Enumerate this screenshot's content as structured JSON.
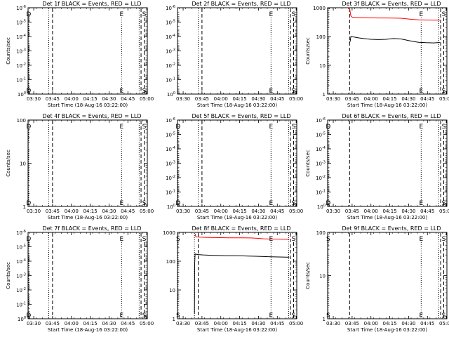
{
  "figure": {
    "panel_count": 9,
    "x_tick_labels": [
      "03:30",
      "03:45",
      "04:00",
      "04:15",
      "04:30",
      "04:45",
      "05:00"
    ],
    "x_axis_label": "Start Time (18-Aug-16 03:22:00)",
    "y_axis_label": "Counts/sec"
  },
  "chart_data": [
    {
      "type": "line",
      "title": "Det 1f BLACK = Events, RED = LLD",
      "xlabel": "Start Time (18-Aug-16 03:22:00)",
      "ylabel": "Counts/sec",
      "x_unit": "minutes after 03:22:00",
      "xlim": [
        3.5,
        98.5
      ],
      "ylim": [
        1,
        1e-06
      ],
      "y_scale": "log",
      "y_ticks": [
        "10^0",
        "10^-1",
        "10^-2",
        "10^-3",
        "10^-4",
        "10^-5",
        "10^-6"
      ],
      "markers": [
        {
          "label": "D",
          "x": 4,
          "style": "dotted"
        },
        {
          "label": "",
          "x": 20,
          "style": "dotted"
        },
        {
          "label": "",
          "x": 23,
          "style": "dashed"
        },
        {
          "label": "E",
          "x": 78,
          "style": "dotted"
        },
        {
          "label": "",
          "x": 92,
          "style": "dotted"
        },
        {
          "label": "",
          "x": 93.5,
          "style": "dashed"
        },
        {
          "label": "S",
          "x": 96,
          "style": "dashed"
        }
      ],
      "series": []
    },
    {
      "type": "line",
      "title": "Det 2f BLACK = Events, RED = LLD",
      "xlabel": "Start Time (18-Aug-16 03:22:00)",
      "ylabel": "",
      "x_unit": "minutes after 03:22:00",
      "xlim": [
        3.5,
        98.5
      ],
      "ylim": [
        1,
        1e-06
      ],
      "y_scale": "log",
      "y_ticks": [
        "10^0",
        "10^-1",
        "10^-2",
        "10^-3",
        "10^-4",
        "10^-5",
        "10^-6"
      ],
      "markers": [
        {
          "label": "",
          "x": 20,
          "style": "dotted"
        },
        {
          "label": "",
          "x": 23,
          "style": "dashed"
        },
        {
          "label": "E",
          "x": 78,
          "style": "dotted"
        },
        {
          "label": "",
          "x": 92,
          "style": "dotted"
        },
        {
          "label": "",
          "x": 93.5,
          "style": "dashed"
        },
        {
          "label": "S",
          "x": 96,
          "style": "dashed"
        }
      ],
      "series": []
    },
    {
      "type": "line",
      "title": "Det 3f BLACK = Events, RED = LLD",
      "xlabel": "Start Time (18-Aug-16 03:22:00)",
      "ylabel": "Counts/sec",
      "x_unit": "minutes after 03:22:00",
      "xlim": [
        3.5,
        98.5
      ],
      "ylim": [
        1,
        1000
      ],
      "y_scale": "log",
      "y_ticks": [
        "1",
        "10",
        "100",
        "1000"
      ],
      "markers": [
        {
          "label": "",
          "x": 4,
          "style": "dotted"
        },
        {
          "label": "",
          "x": 21,
          "style": "dashed"
        },
        {
          "label": "E",
          "x": 78,
          "style": "dotted"
        },
        {
          "label": "",
          "x": 92,
          "style": "dotted"
        },
        {
          "label": "",
          "x": 93.5,
          "style": "dashed"
        },
        {
          "label": "S",
          "x": 96,
          "style": "dashed"
        }
      ],
      "series": [
        {
          "color": "#ff0000",
          "x": [
            21,
            21.5,
            22,
            23,
            25,
            28,
            32,
            38,
            44,
            50,
            56,
            62,
            68,
            72,
            76,
            82,
            88,
            92.8
          ],
          "y": [
            980,
            700,
            520,
            470,
            460,
            455,
            450,
            445,
            440,
            440,
            435,
            430,
            405,
            390,
            380,
            375,
            372,
            370
          ]
        },
        {
          "color": "#000000",
          "x": [
            21,
            21.5,
            22,
            23,
            25,
            28,
            32,
            38,
            44,
            50,
            56,
            62,
            68,
            72,
            76,
            82,
            88,
            92.8
          ],
          "y": [
            60,
            70,
            100,
            98,
            95,
            90,
            85,
            80,
            78,
            80,
            85,
            82,
            72,
            67,
            63,
            61,
            60,
            62
          ]
        }
      ]
    },
    {
      "type": "line",
      "title": "Det 4f BLACK = Events, RED = LLD",
      "xlabel": "Start Time (18-Aug-16 03:22:00)",
      "ylabel": "Counts/sec",
      "x_unit": "minutes after 03:22:00",
      "xlim": [
        3.5,
        98.5
      ],
      "ylim": [
        1,
        100
      ],
      "y_scale": "log",
      "y_ticks": [
        "1",
        "10",
        "100"
      ],
      "markers": [
        {
          "label": "D",
          "x": 4,
          "style": "dotted"
        },
        {
          "label": "",
          "x": 20,
          "style": "dotted"
        },
        {
          "label": "",
          "x": 23,
          "style": "dashed"
        },
        {
          "label": "E",
          "x": 78,
          "style": "dotted"
        },
        {
          "label": "",
          "x": 92,
          "style": "dotted"
        },
        {
          "label": "",
          "x": 93.5,
          "style": "dashed"
        },
        {
          "label": "S",
          "x": 96,
          "style": "dashed"
        }
      ],
      "series": []
    },
    {
      "type": "line",
      "title": "Det 5f BLACK = Events, RED = LLD",
      "xlabel": "Start Time (18-Aug-16 03:22:00)",
      "ylabel": "",
      "x_unit": "minutes after 03:22:00",
      "xlim": [
        3.5,
        98.5
      ],
      "ylim": [
        1,
        1e-06
      ],
      "y_scale": "log",
      "y_ticks": [
        "10^0",
        "10^-1",
        "10^-2",
        "10^-3",
        "10^-4",
        "10^-5",
        "10^-6"
      ],
      "markers": [
        {
          "label": "D",
          "x": 4,
          "style": "dotted"
        },
        {
          "label": "",
          "x": 20,
          "style": "dotted"
        },
        {
          "label": "",
          "x": 23,
          "style": "dashed"
        },
        {
          "label": "E",
          "x": 78,
          "style": "dotted"
        },
        {
          "label": "",
          "x": 92,
          "style": "dotted"
        },
        {
          "label": "",
          "x": 93.5,
          "style": "dashed"
        },
        {
          "label": "S",
          "x": 96,
          "style": "dashed"
        }
      ],
      "series": []
    },
    {
      "type": "line",
      "title": "Det 6f BLACK = Events, RED = LLD",
      "xlabel": "Start Time (18-Aug-16 03:22:00)",
      "ylabel": "Counts/sec",
      "x_unit": "minutes after 03:22:00",
      "xlim": [
        3.5,
        98.5
      ],
      "ylim": [
        1,
        1e-06
      ],
      "y_scale": "log",
      "y_ticks": [
        "10^0",
        "10^-1",
        "10^-2",
        "10^-3",
        "10^-4",
        "10^-5",
        "10^-6"
      ],
      "markers": [
        {
          "label": "D",
          "x": 4,
          "style": "dotted"
        },
        {
          "label": "",
          "x": 21,
          "style": "dashed"
        },
        {
          "label": "E",
          "x": 78,
          "style": "dotted"
        },
        {
          "label": "",
          "x": 92,
          "style": "dotted"
        },
        {
          "label": "",
          "x": 93.5,
          "style": "dashed"
        },
        {
          "label": "S",
          "x": 96,
          "style": "dashed"
        }
      ],
      "series": []
    },
    {
      "type": "line",
      "title": "Det 7f BLACK = Events, RED = LLD",
      "xlabel": "Start Time (18-Aug-16 03:22:00)",
      "ylabel": "Counts/sec",
      "x_unit": "minutes after 03:22:00",
      "xlim": [
        3.5,
        98.5
      ],
      "ylim": [
        1,
        1e-06
      ],
      "y_scale": "log",
      "y_ticks": [
        "10^0",
        "10^-1",
        "10^-2",
        "10^-3",
        "10^-4",
        "10^-5",
        "10^-6"
      ],
      "markers": [
        {
          "label": "D",
          "x": 4,
          "style": "dotted"
        },
        {
          "label": "",
          "x": 20,
          "style": "dotted"
        },
        {
          "label": "",
          "x": 23,
          "style": "dashed"
        },
        {
          "label": "E",
          "x": 78,
          "style": "dotted"
        },
        {
          "label": "",
          "x": 92,
          "style": "dotted"
        },
        {
          "label": "",
          "x": 93.5,
          "style": "dashed"
        },
        {
          "label": "S",
          "x": 96,
          "style": "dashed"
        }
      ],
      "series": []
    },
    {
      "type": "line",
      "title": "Det 8f BLACK = Events, RED = LLD",
      "xlabel": "Start Time (18-Aug-16 03:22:00)",
      "ylabel": "",
      "x_unit": "minutes after 03:22:00",
      "xlim": [
        3.5,
        98.5
      ],
      "ylim": [
        1,
        1000
      ],
      "y_scale": "log",
      "y_ticks": [
        "1",
        "10",
        "100",
        "1000"
      ],
      "markers": [
        {
          "label": "S",
          "x": 4,
          "style": "dotted"
        },
        {
          "label": "",
          "x": 17,
          "style": "dotted"
        },
        {
          "label": "",
          "x": 20,
          "style": "dashed"
        },
        {
          "label": "E",
          "x": 78,
          "style": "dotted"
        },
        {
          "label": "",
          "x": 92,
          "style": "dotted"
        },
        {
          "label": "",
          "x": 93.5,
          "style": "dashed"
        },
        {
          "label": "S",
          "x": 96,
          "style": "dashed"
        }
      ],
      "series": [
        {
          "color": "#ff0000",
          "x": [
            17.5,
            18,
            19,
            20,
            22,
            26,
            32,
            38,
            44,
            50,
            56,
            62,
            68,
            72,
            76,
            82,
            88,
            92.5
          ],
          "y": [
            900,
            720,
            700,
            690,
            680,
            670,
            660,
            655,
            650,
            648,
            645,
            640,
            620,
            600,
            590,
            585,
            580,
            575
          ]
        },
        {
          "color": "#000000",
          "x": [
            17,
            17.2,
            17.5,
            18,
            20,
            24,
            30,
            36,
            42,
            48,
            54,
            60,
            66,
            72,
            78,
            84,
            90,
            92.5
          ],
          "y": [
            1.5,
            80,
            180,
            175,
            170,
            165,
            160,
            158,
            155,
            155,
            153,
            150,
            148,
            145,
            142,
            140,
            138,
            137
          ]
        }
      ]
    },
    {
      "type": "line",
      "title": "Det 9f BLACK = Events, RED = LLD",
      "xlabel": "Start Time (18-Aug-16 03:22:00)",
      "ylabel": "Counts/sec",
      "x_unit": "minutes after 03:22:00",
      "xlim": [
        3.5,
        98.5
      ],
      "ylim": [
        1,
        100
      ],
      "y_scale": "log",
      "y_ticks": [
        "1",
        "10",
        "100"
      ],
      "markers": [
        {
          "label": "S",
          "x": 4,
          "style": "dotted"
        },
        {
          "label": "",
          "x": 21,
          "style": "dashed"
        },
        {
          "label": "E",
          "x": 78,
          "style": "dotted"
        },
        {
          "label": "",
          "x": 92,
          "style": "dotted"
        },
        {
          "label": "",
          "x": 93.5,
          "style": "dashed"
        },
        {
          "label": "S",
          "x": 96,
          "style": "dashed"
        }
      ],
      "series": []
    }
  ]
}
